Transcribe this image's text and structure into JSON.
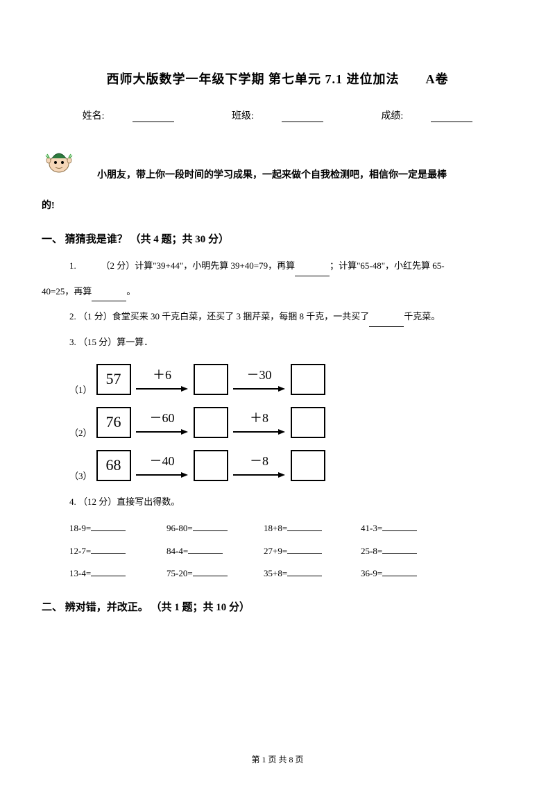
{
  "title": "西师大版数学一年级下学期 第七单元 7.1 进位加法　　A卷",
  "info": {
    "name_label": "姓名:",
    "class_label": "班级:",
    "score_label": "成绩:"
  },
  "intro": {
    "line1": "小朋友，带上你一段时间的学习成果，一起来做个自我检测吧，相信你一定是最棒",
    "line2": "的!"
  },
  "section1": {
    "header": "一、 猜猜我是谁？ （共 4 题；共 30 分）",
    "q1": {
      "prefix": "1. 　　　（2 分）计算\"39+44\"，小明先算 39+40=79，再算",
      "mid": "；计算\"65-48\"，小红先算 65-",
      "cont": "40=25，再算",
      "suffix": "。"
    },
    "q2": {
      "prefix": "2. （1 分）食堂买来 30 千克白菜，还买了 3 捆芹菜，每捆 8 千克，一共买了",
      "suffix": "千克菜。"
    },
    "q3": {
      "header": "3. （15 分）算一算．",
      "chains": [
        {
          "label": "（1）",
          "start": "57",
          "op1": "＋6",
          "op2": "－30"
        },
        {
          "label": "（2）",
          "start": "76",
          "op1": "－60",
          "op2": "＋8"
        },
        {
          "label": "（3）",
          "start": "68",
          "op1": "－40",
          "op2": "－8"
        }
      ]
    },
    "q4": {
      "header": "4. （12 分）直接写出得数。",
      "rows": [
        [
          "18-9=",
          "96-80=",
          "18+8=",
          "41-3="
        ],
        [
          "12-7=",
          "84-4=",
          "27+9=",
          "25-8="
        ],
        [
          "13-4=",
          "75-20=",
          "35+8=",
          "36-9="
        ]
      ]
    }
  },
  "section2": {
    "header": "二、 辨对错，并改正。 （共 1 题；共 10 分）"
  },
  "footer": {
    "page_label": "第 1 页 共 8 页"
  },
  "colors": {
    "text": "#000000",
    "bg": "#ffffff",
    "mascot_green": "#2d7a3e",
    "mascot_skin": "#f5d6b8"
  }
}
